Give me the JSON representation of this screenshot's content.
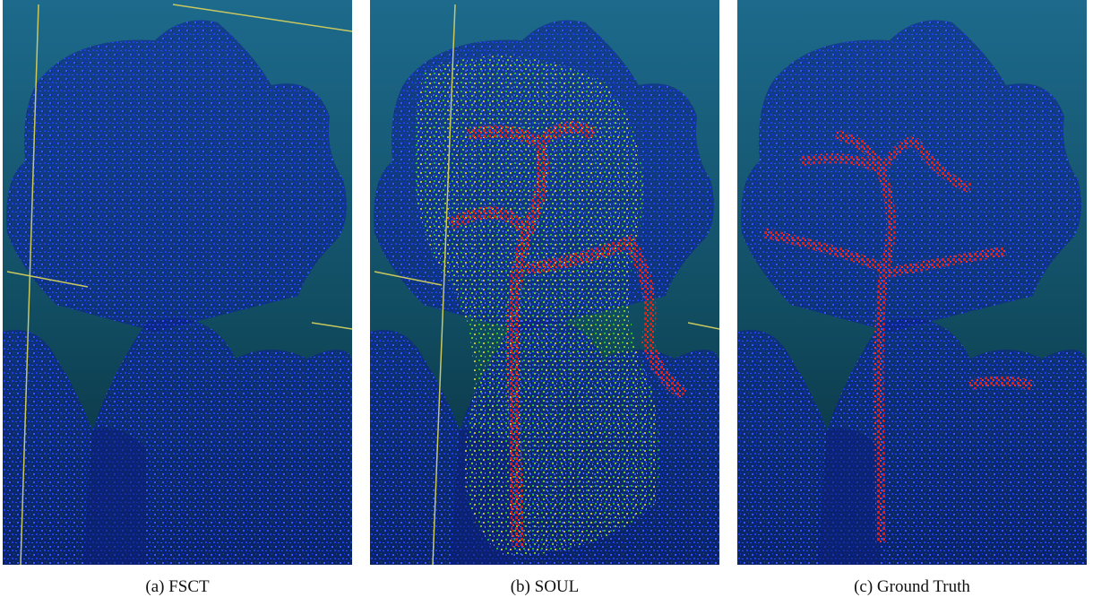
{
  "panels": [
    {
      "caption": "(a) FSCT"
    },
    {
      "caption": "(b) SOUL"
    },
    {
      "caption": "(c) Ground Truth"
    }
  ]
}
